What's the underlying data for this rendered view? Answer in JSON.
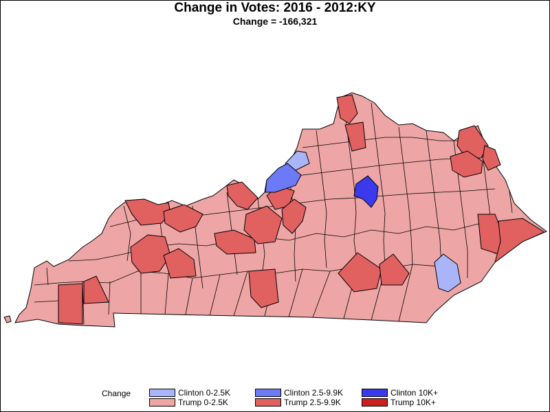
{
  "header": {
    "title": "Change in Votes: 2016 - 2012:KY",
    "subtitle": "Change = -166,321"
  },
  "legend": {
    "title": "Change",
    "items": [
      {
        "label": "Clinton 0-2.5K",
        "color": "#aab4f8"
      },
      {
        "label": "Clinton 2.5-9.9K",
        "color": "#6c7af6"
      },
      {
        "label": "Clinton 10K+",
        "color": "#3a3aec"
      },
      {
        "label": "Trump 0-2.5K",
        "color": "#eea5a5"
      },
      {
        "label": "Trump 2.5-9.9K",
        "color": "#e16060"
      },
      {
        "label": "Trump 10K+",
        "color": "#cc1f1f"
      }
    ]
  },
  "map": {
    "region": "KY",
    "background_color": "#eea5a5",
    "border_color": "#000000"
  }
}
